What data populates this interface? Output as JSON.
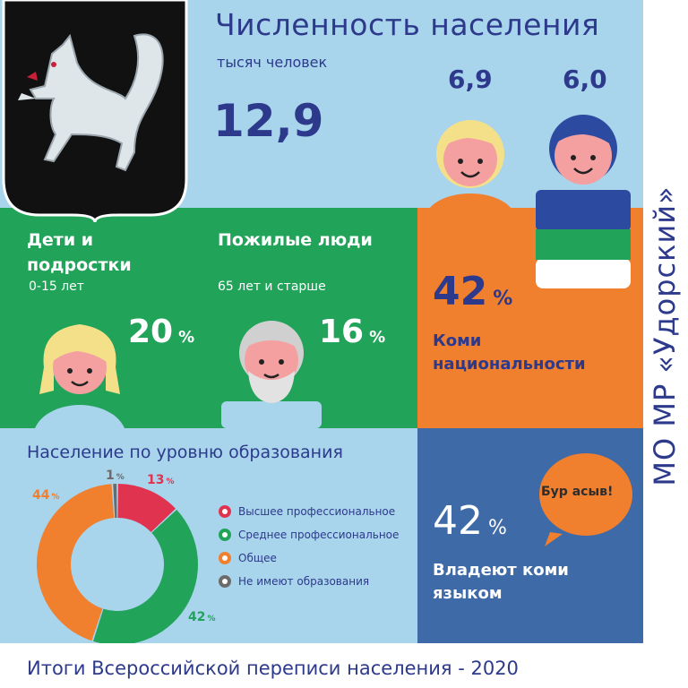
{
  "header": {
    "title": "Численность населения",
    "unit": "тысяч человек",
    "total": "12,9",
    "female": "6,9",
    "male": "6,0"
  },
  "side_title": "МО МР «Удорский»",
  "groups": {
    "children": {
      "label": "Дети и подростки",
      "age": "0-15 лет",
      "percent": "20",
      "percent_sign": "%"
    },
    "elderly": {
      "label": "Пожилые люди",
      "age": "65 лет и старше",
      "percent": "16",
      "percent_sign": "%"
    }
  },
  "komi": {
    "percent": "42",
    "percent_sign": "%",
    "label": "Коми национальности"
  },
  "language": {
    "percent": "42",
    "percent_sign": "%",
    "label": "Владеют коми языком",
    "bubble": "Бур асыв!"
  },
  "footer": "Итоги Всероссийской переписи населения - 2020",
  "colors": {
    "navy": "#2d3a8c",
    "light_blue": "#a8d4ec",
    "green": "#22a35a",
    "orange": "#f07f2e",
    "blue": "#3e6aa8",
    "red": "#e0334f",
    "gray": "#6b6b6b"
  },
  "icons": [
    "coat-of-arms-fox-icon",
    "woman-icon",
    "man-icon",
    "girl-icon",
    "elderly-man-icon",
    "speech-bubble-icon"
  ],
  "chart_data": {
    "type": "pie",
    "donut": true,
    "title": "Население по уровню образования",
    "categories": [
      "Высшее профессиональное",
      "Среднее профессиональное",
      "Общее",
      "Не имеют образования"
    ],
    "values": [
      13,
      42,
      44,
      1
    ],
    "labels": [
      "13",
      "42",
      "44",
      "1"
    ],
    "percent_sign": "%",
    "colors": [
      "#e0334f",
      "#22a35a",
      "#f07f2e",
      "#6b6b6b"
    ],
    "legend_position": "right"
  }
}
